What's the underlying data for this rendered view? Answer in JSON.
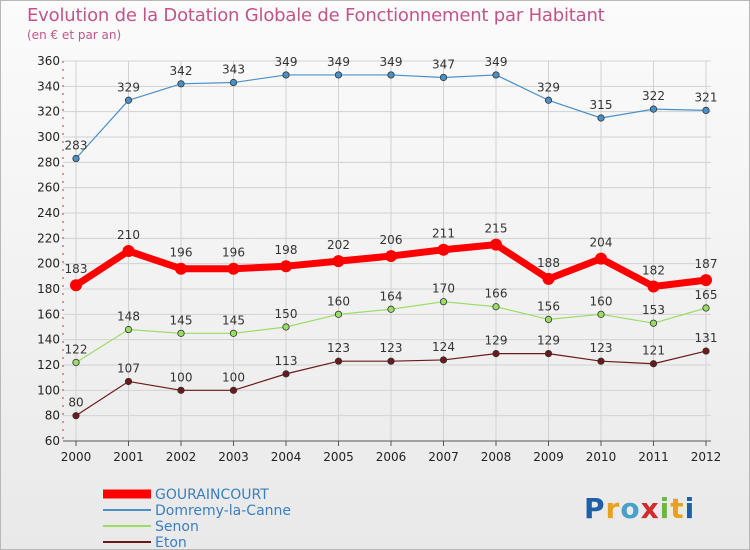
{
  "header": {
    "title": "Evolution de la Dotation Globale de Fonctionnement par Habitant",
    "subtitle": "(en € et par an)"
  },
  "logo": {
    "text": "Proxiti",
    "colors": [
      "#1f5fa8",
      "#e8a11d",
      "#4aa0c8",
      "#d12b2b",
      "#6ab840",
      "#e8a11d",
      "#1f5fa8"
    ]
  },
  "chart_data": {
    "type": "line",
    "title": "Evolution de la Dotation Globale de Fonctionnement par Habitant",
    "subtitle": "(en € et par an)",
    "xlabel": "",
    "ylabel": "",
    "categories": [
      "2000",
      "2001",
      "2002",
      "2003",
      "2004",
      "2005",
      "2006",
      "2007",
      "2008",
      "2009",
      "2010",
      "2011",
      "2012"
    ],
    "ylim": [
      60,
      360
    ],
    "yticks": [
      60,
      80,
      100,
      120,
      140,
      160,
      180,
      200,
      220,
      240,
      260,
      280,
      300,
      320,
      340,
      360
    ],
    "grid": true,
    "legend_position": "bottom-left",
    "series": [
      {
        "name": "GOURAINCOURT",
        "color": "#ff0000",
        "emphasis": true,
        "values": [
          183,
          210,
          196,
          196,
          198,
          202,
          206,
          211,
          215,
          188,
          204,
          182,
          187
        ]
      },
      {
        "name": "Domremy-la-Canne",
        "color": "#4a90c8",
        "emphasis": false,
        "values": [
          283,
          329,
          342,
          343,
          349,
          349,
          349,
          347,
          349,
          329,
          315,
          322,
          321
        ]
      },
      {
        "name": "Senon",
        "color": "#99dd66",
        "emphasis": false,
        "values": [
          122,
          148,
          145,
          145,
          150,
          160,
          164,
          170,
          166,
          156,
          160,
          153,
          165
        ]
      },
      {
        "name": "Eton",
        "color": "#6b1a1a",
        "emphasis": false,
        "values": [
          80,
          107,
          100,
          100,
          113,
          123,
          123,
          124,
          129,
          129,
          123,
          121,
          131
        ]
      }
    ]
  }
}
